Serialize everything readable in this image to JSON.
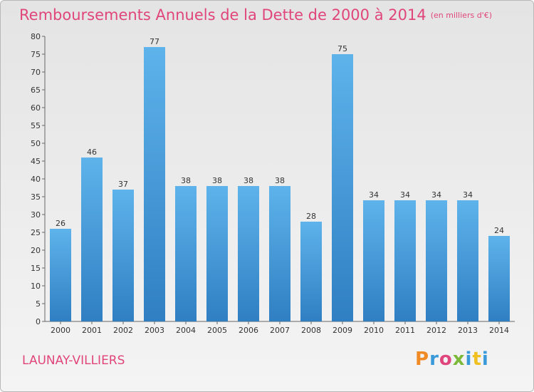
{
  "chart_data": {
    "type": "bar",
    "title": "Remboursements Annuels de la Dette de 2000 à 2014",
    "subtitle": "(en milliers d'€)",
    "categories": [
      "2000",
      "2001",
      "2002",
      "2003",
      "2004",
      "2005",
      "2006",
      "2007",
      "2008",
      "2009",
      "2010",
      "2011",
      "2012",
      "2013",
      "2014"
    ],
    "values": [
      26,
      46,
      37,
      77,
      38,
      38,
      38,
      38,
      28,
      75,
      34,
      34,
      34,
      34,
      24
    ],
    "ylim": [
      0,
      80
    ],
    "yticks": [
      0,
      5,
      10,
      15,
      20,
      25,
      30,
      35,
      40,
      45,
      50,
      55,
      60,
      65,
      70,
      75,
      80
    ],
    "grid": false,
    "legend": "none",
    "bar_color_top": "#5eb3eb",
    "bar_color_bottom": "#2f7fc2"
  },
  "footer": {
    "commune": "LAUNAY-VILLIERS",
    "logo_text": "Proxiti",
    "logo_colors": [
      "#f08a24",
      "#3a9ad9",
      "#e0457b",
      "#7cb83a",
      "#3a9ad9",
      "#f0c020",
      "#3a9ad9"
    ]
  }
}
